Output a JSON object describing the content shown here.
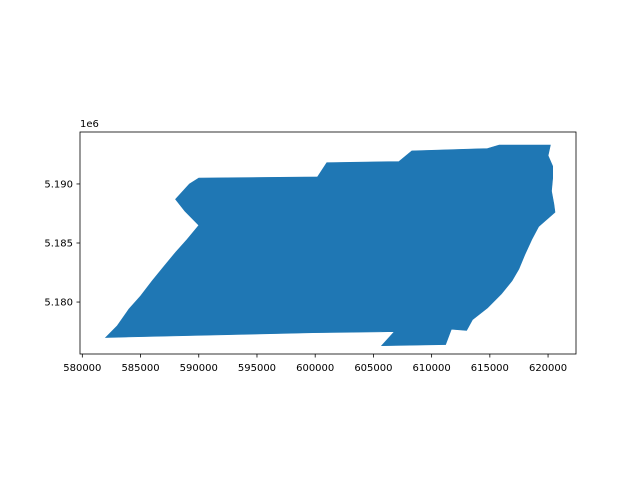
{
  "chart_data": {
    "type": "area",
    "title": "",
    "xlabel": "",
    "ylabel": "",
    "xlim": [
      579800,
      622400
    ],
    "ylim": [
      5175600,
      5194400
    ],
    "x_ticks": [
      580000,
      585000,
      590000,
      595000,
      600000,
      605000,
      610000,
      615000,
      620000
    ],
    "y_ticks": [
      5180000,
      5185000,
      5190000
    ],
    "y_tick_labels": [
      "5.180",
      "5.185",
      "5.190"
    ],
    "y_offset_label": "1e6",
    "grid": false,
    "fill_color": "#1f77b4",
    "series": [
      {
        "polygon": [
          [
            590000,
            5190500
          ],
          [
            600200,
            5190600
          ],
          [
            601000,
            5191800
          ],
          [
            607200,
            5191900
          ],
          [
            608300,
            5192800
          ],
          [
            614800,
            5193000
          ],
          [
            615800,
            5193300
          ],
          [
            620200,
            5193300
          ],
          [
            620000,
            5192400
          ],
          [
            620400,
            5191500
          ],
          [
            620400,
            5190500
          ],
          [
            620300,
            5189400
          ],
          [
            620500,
            5188300
          ],
          [
            620600,
            5187600
          ],
          [
            619200,
            5186400
          ],
          [
            618600,
            5185300
          ],
          [
            618000,
            5184000
          ],
          [
            617500,
            5182800
          ],
          [
            616900,
            5181800
          ],
          [
            616000,
            5180700
          ],
          [
            614800,
            5179500
          ],
          [
            613500,
            5178500
          ],
          [
            613000,
            5177600
          ],
          [
            611700,
            5177700
          ],
          [
            611200,
            5176400
          ],
          [
            605700,
            5176300
          ],
          [
            606800,
            5177500
          ],
          [
            599800,
            5177400
          ],
          [
            582000,
            5177000
          ],
          [
            583000,
            5178000
          ],
          [
            584000,
            5179400
          ],
          [
            585000,
            5180500
          ],
          [
            586000,
            5181800
          ],
          [
            587000,
            5183000
          ],
          [
            588000,
            5184200
          ],
          [
            589000,
            5185300
          ],
          [
            590000,
            5186500
          ],
          [
            588800,
            5187700
          ],
          [
            588000,
            5188700
          ],
          [
            589200,
            5190000
          ]
        ]
      }
    ]
  }
}
